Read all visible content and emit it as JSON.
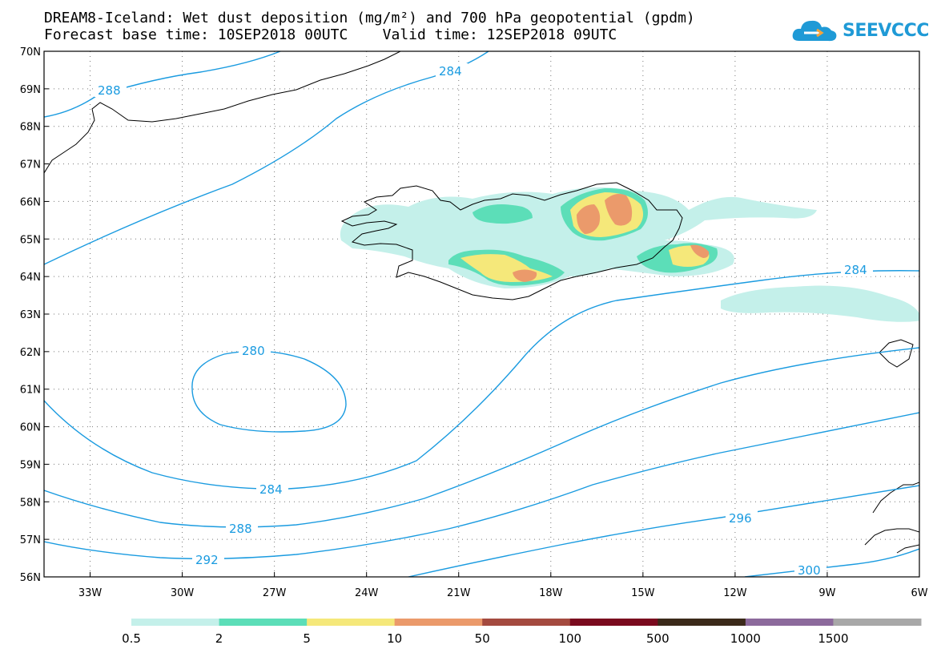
{
  "title": {
    "line1": "DREAM8-Iceland: Wet dust deposition (mg/m²) and 700 hPa geopotential (gpdm)",
    "line2": "Forecast base time: 10SEP2018 00UTC    Valid time: 12SEP2018 09UTC"
  },
  "logo": {
    "text": "SEEVCCC",
    "icon": "cloud-icon",
    "color": "#1f9ad6"
  },
  "map": {
    "lat_labels": [
      "70N",
      "69N",
      "68N",
      "67N",
      "66N",
      "65N",
      "64N",
      "63N",
      "62N",
      "61N",
      "60N",
      "59N",
      "58N",
      "57N",
      "56N"
    ],
    "lon_labels": [
      "33W",
      "30W",
      "27W",
      "24W",
      "21W",
      "18W",
      "15W",
      "12W",
      "9W",
      "6W"
    ],
    "lat_range": [
      56,
      70
    ],
    "lon_range": [
      -34.5,
      -6
    ],
    "gridlines": "dotted",
    "contour_color": "#1a9be0",
    "contour_labels": [
      "288",
      "284",
      "284",
      "280",
      "284",
      "288",
      "292",
      "296",
      "300"
    ]
  },
  "legend": {
    "colors": [
      "#c4f0ea",
      "#5cdeb8",
      "#f5e87a",
      "#eb9a6b",
      "#a44a3f",
      "#7a0a1e",
      "#3b2a1a",
      "#8c6a9c",
      "#a8a8a8"
    ],
    "labels": [
      "0.5",
      "2",
      "5",
      "10",
      "50",
      "100",
      "500",
      "1000",
      "1500"
    ]
  }
}
